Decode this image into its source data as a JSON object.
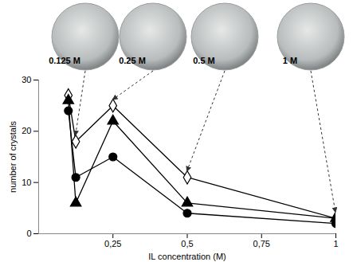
{
  "chart_data": {
    "type": "line",
    "x": [
      0.1,
      0.125,
      0.25,
      0.5,
      1
    ],
    "series": [
      {
        "color": "#000000",
        "marker": "diamond-open",
        "values": [
          27,
          18,
          25,
          11,
          3
        ]
      },
      {
        "color": "#000000",
        "marker": "triangle",
        "values": [
          26,
          6,
          22,
          6,
          3
        ]
      },
      {
        "color": "#000000",
        "marker": "circle",
        "values": [
          24,
          11,
          15,
          4,
          2
        ]
      }
    ],
    "xlabel": "IL concentration (M)",
    "ylabel": "number of crystals",
    "xlim": [
      0,
      1
    ],
    "xticks": [
      {
        "value": 0.25,
        "label": "0,25"
      },
      {
        "value": 0.5,
        "label": "0,5"
      },
      {
        "value": 0.75,
        "label": "0,75"
      },
      1
    ],
    "ylim": [
      0,
      30
    ],
    "yticks": [
      0,
      10,
      20,
      30
    ],
    "grid": false,
    "annotations": [
      {
        "text": "0.125 M",
        "x": 0.125
      },
      {
        "text": "0.25 M",
        "x": 0.25
      },
      {
        "text": "0.5 M",
        "x": 0.5
      },
      {
        "text": "1 M",
        "x": 1
      }
    ]
  }
}
